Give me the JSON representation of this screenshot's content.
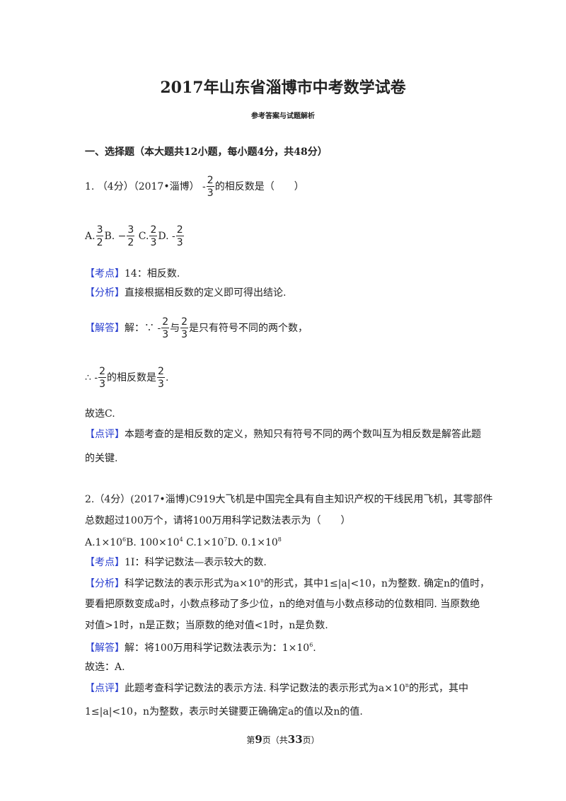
{
  "title": "2017年山东省淄博市中考数学试卷",
  "subtitle": "参考答案与试题解析",
  "section": "一、选择题（本大题共12小题，每小题4分，共48分）",
  "q1": {
    "stem_pre": "1. （4分）（2017•淄博） -",
    "frac_n": "2",
    "frac_d": "3",
    "stem_post": "的相反数是（　　）",
    "opt_a": "A.",
    "a_n": "3",
    "a_d": "2",
    "opt_b": "B. −",
    "b_n": "3",
    "b_d": "2",
    "opt_c": " C.",
    "c_n": "2",
    "c_d": "3",
    "opt_d": "D.  -",
    "d_n": "2",
    "d_d": "3",
    "kaodian_tag": "【考点】",
    "kaodian": "14：相反数.",
    "fenxi_tag": "【分析】",
    "fenxi": "直接根据相反数的定义即可得出结论.",
    "jieda_tag": "【解答】",
    "jieda_pre": "解：∵ -",
    "jieda_mid": "与",
    "jieda_post": "是只有符号不同的两个数，",
    "therefore_pre": "∴ -",
    "therefore_mid": "的相反数是",
    "therefore_post": ".",
    "answer": "故选C.",
    "dianping_tag": "【点评】",
    "dianping1": "本题考查的是相反数的定义，熟知只有符号不同的两个数叫互为相反数是解答此题",
    "dianping2": "的关键."
  },
  "q2": {
    "stem1": "2.（4分）(2017•淄博)C919大飞机是中国完全具有自主知识产权的干线民用飞机，其零部件",
    "stem2": "总数超过100万个，请将100万用科学记数法表示为（　　）",
    "opt_a": "A.1×10",
    "exp_a": "6",
    "opt_b": "B. 100×10",
    "exp_b": "4",
    "opt_c": "  C.1×10",
    "exp_c": "7",
    "opt_d": "D. 0.1×10",
    "exp_d": "8",
    "kaodian_tag": "【考点】",
    "kaodian": "1I：科学记数法—表示较大的数.",
    "fenxi_tag": "【分析】",
    "fenxi1_pre": "科学记数法的表示形式为a×10",
    "fenxi1_exp": "n",
    "fenxi1_post": "的形式，其中1≤|a|<10，n为整数. 确定n的值时，",
    "fenxi2": "要看把原数变成a时，小数点移动了多少位，n的绝对值与小数点移动的位数相同. 当原数绝",
    "fenxi3": "对值>1时，n是正数；当原数的绝对值<1时，n是负数.",
    "jieda_tag": "【解答】",
    "jieda_pre": "解：将100万用科学记数法表示为：1×10",
    "jieda_exp": "6",
    "jieda_post": ".",
    "answer": "故选：A.",
    "dianping_tag": "【点评】",
    "dianping1_pre": "此题考查科学记数法的表示方法. 科学记数法的表示形式为a×10",
    "dianping1_exp": "n",
    "dianping1_post": "的形式，其中",
    "dianping2": "1≤|a|<10，n为整数，表示时关键要正确确定a的值以及n的值."
  },
  "footer": {
    "pre": "第",
    "page": "9",
    "mid": "页（共",
    "total": "33",
    "post": "页）"
  },
  "colors": {
    "tag": "#2a3fd0",
    "text": "#222222"
  }
}
